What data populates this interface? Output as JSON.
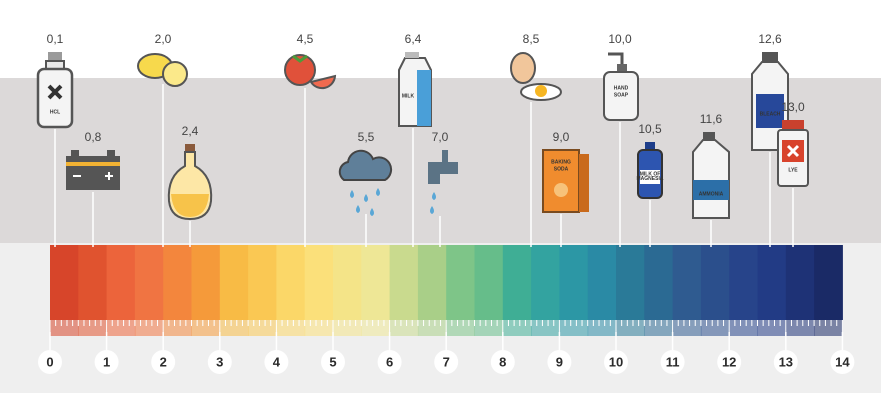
{
  "items": [
    {
      "label": "0,1",
      "icon_text": [
        "HCL"
      ]
    },
    {
      "label": "0,8"
    },
    {
      "label": "2,0"
    },
    {
      "label": "2,4"
    },
    {
      "label": "4,5"
    },
    {
      "label": "5,5"
    },
    {
      "label": "6,4",
      "icon_text": [
        "MILK"
      ]
    },
    {
      "label": "7,0"
    },
    {
      "label": "8,5"
    },
    {
      "label": "9,0",
      "icon_text": [
        "BAKING",
        "SODA"
      ]
    },
    {
      "label": "10,0",
      "icon_text": [
        "HAND",
        "SOAP"
      ]
    },
    {
      "label": "10,5",
      "icon_text": [
        "MILK OF",
        "MAGNESIA"
      ]
    },
    {
      "label": "11,6",
      "icon_text": [
        "AMMONIA"
      ]
    },
    {
      "label": "12,6",
      "icon_text": [
        "BLEACH"
      ]
    },
    {
      "label": "13,0",
      "icon_text": [
        "LYE"
      ]
    }
  ],
  "scale": [
    "0",
    "1",
    "2",
    "3",
    "4",
    "5",
    "6",
    "7",
    "8",
    "9",
    "10",
    "11",
    "12",
    "13",
    "14"
  ]
}
